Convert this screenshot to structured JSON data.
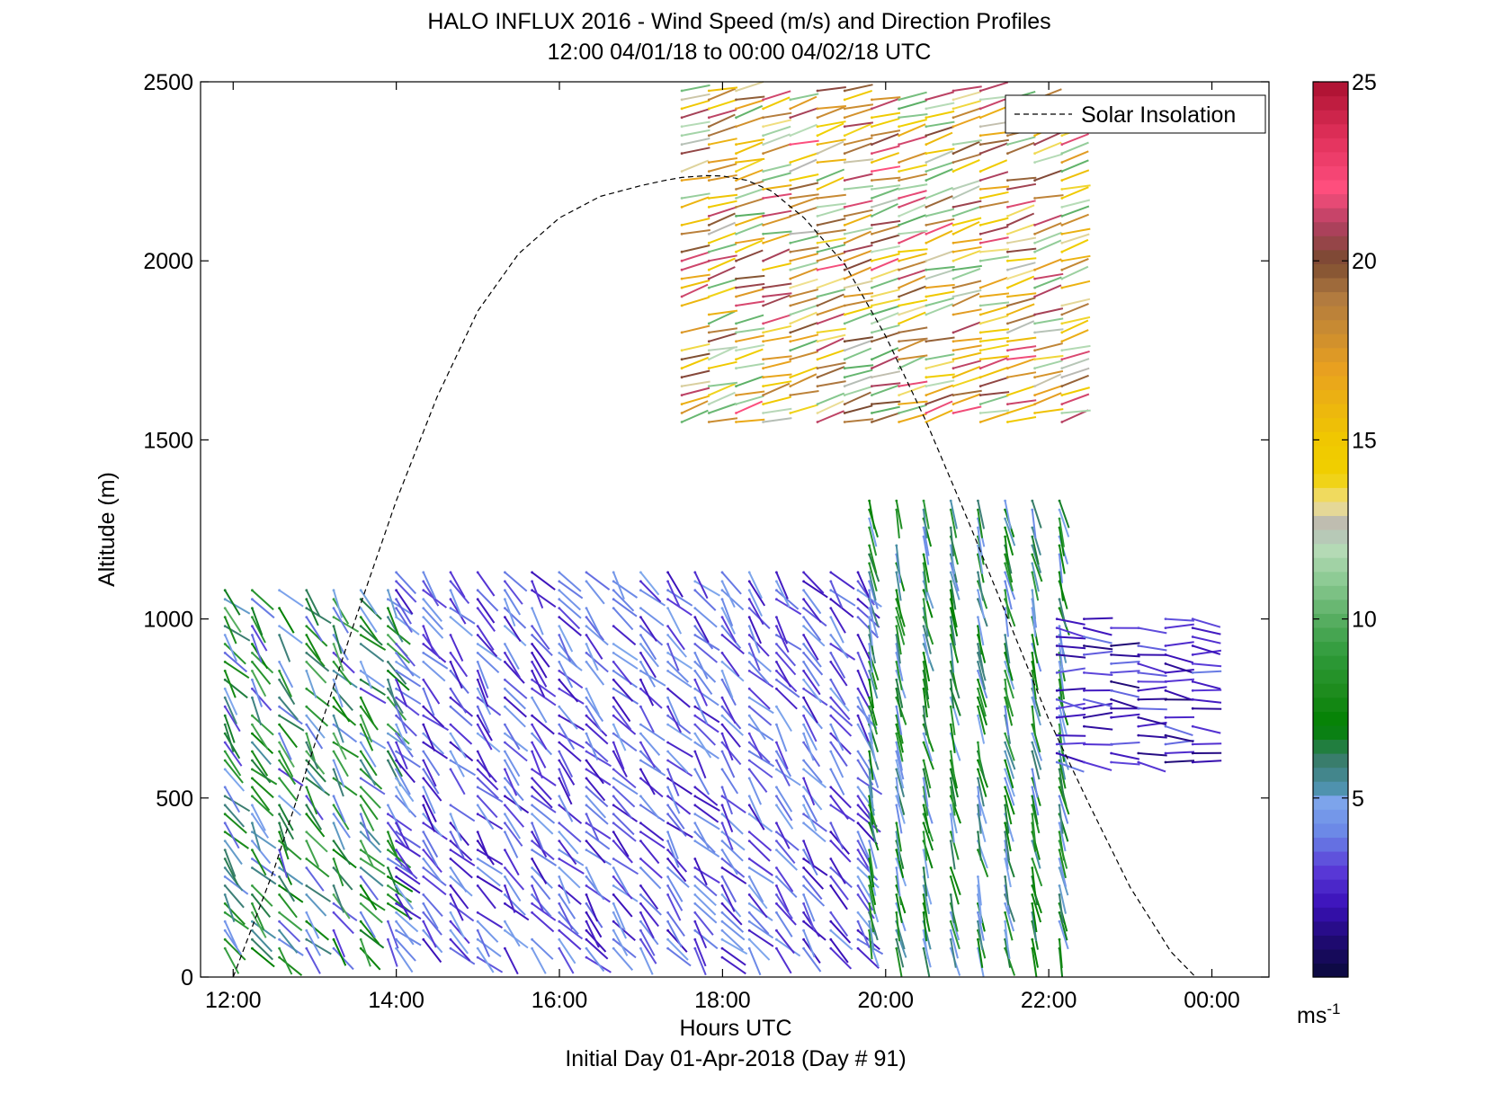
{
  "chart_data": {
    "type": "wind_barb_profile",
    "title": "HALO INFLUX 2016 - Wind Speed (m/s) and Direction Profiles",
    "subtitle": "12:00 04/01/18 to 00:00 04/02/18  UTC",
    "xlabel": "Hours UTC",
    "xlabel2": "Initial Day 01-Apr-2018 (Day # 91)",
    "ylabel": "Altitude (m)",
    "xlim": [
      11.6,
      24.7
    ],
    "ylim": [
      0,
      2500
    ],
    "xticks": [
      {
        "value": 12,
        "label": "12:00"
      },
      {
        "value": 14,
        "label": "14:00"
      },
      {
        "value": 16,
        "label": "16:00"
      },
      {
        "value": 18,
        "label": "18:00"
      },
      {
        "value": 20,
        "label": "20:00"
      },
      {
        "value": 22,
        "label": "22:00"
      },
      {
        "value": 24,
        "label": "00:00"
      }
    ],
    "yticks": [
      {
        "value": 0,
        "label": "0"
      },
      {
        "value": 500,
        "label": "500"
      },
      {
        "value": 1000,
        "label": "1000"
      },
      {
        "value": 1500,
        "label": "1500"
      },
      {
        "value": 2000,
        "label": "2000"
      },
      {
        "value": 2500,
        "label": "2500"
      }
    ],
    "colorbar": {
      "range": [
        0,
        25
      ],
      "ticks": [
        {
          "value": 5,
          "label": "5"
        },
        {
          "value": 10,
          "label": "10"
        },
        {
          "value": 15,
          "label": "15"
        },
        {
          "value": 20,
          "label": "20"
        },
        {
          "value": 25,
          "label": "25"
        }
      ],
      "unit_base": "ms",
      "unit_exp": "-1",
      "stops": [
        {
          "v": 0,
          "c": "#0a0a3a"
        },
        {
          "v": 1,
          "c": "#1e0a70"
        },
        {
          "v": 2,
          "c": "#3a10b8"
        },
        {
          "v": 3,
          "c": "#5a3ad8"
        },
        {
          "v": 4,
          "c": "#6a86e6"
        },
        {
          "v": 5,
          "c": "#7fa8ec"
        },
        {
          "v": 5.3,
          "c": "#4a90a8"
        },
        {
          "v": 6,
          "c": "#3c7d72"
        },
        {
          "v": 7,
          "c": "#008000"
        },
        {
          "v": 8,
          "c": "#1e8c1e"
        },
        {
          "v": 9,
          "c": "#2f9a3a"
        },
        {
          "v": 10,
          "c": "#58ae62"
        },
        {
          "v": 11,
          "c": "#88c890"
        },
        {
          "v": 12,
          "c": "#b8dcb8"
        },
        {
          "v": 12.6,
          "c": "#b6b6b6"
        },
        {
          "v": 13.2,
          "c": "#f0e090"
        },
        {
          "v": 14,
          "c": "#f0d000"
        },
        {
          "v": 15,
          "c": "#f0c800"
        },
        {
          "v": 17,
          "c": "#e8a020"
        },
        {
          "v": 19,
          "c": "#b07a40"
        },
        {
          "v": 20,
          "c": "#7a4a30"
        },
        {
          "v": 21,
          "c": "#b04060"
        },
        {
          "v": 22,
          "c": "#ff4f7f"
        },
        {
          "v": 23.5,
          "c": "#e0305a"
        },
        {
          "v": 25,
          "c": "#aa1030"
        }
      ]
    },
    "series": [
      {
        "name": "Solar Insolation",
        "style": "dashed",
        "x": [
          12.0,
          12.5,
          13.0,
          13.5,
          14.0,
          14.5,
          15.0,
          15.5,
          16.0,
          16.5,
          17.0,
          17.3,
          17.5,
          17.8,
          18.0,
          18.3,
          18.6,
          19.0,
          19.5,
          20.0,
          20.5,
          21.0,
          21.5,
          22.0,
          22.5,
          23.0,
          23.5,
          23.8
        ],
        "y": [
          0,
          300,
          650,
          1000,
          1330,
          1620,
          1860,
          2020,
          2120,
          2180,
          2210,
          2225,
          2233,
          2238,
          2237,
          2225,
          2195,
          2120,
          1990,
          1790,
          1550,
          1280,
          1000,
          720,
          480,
          250,
          70,
          0
        ]
      }
    ],
    "barbs_description": "Wind vectors at ~30 min intervals and ~25 m altitude spacing, colored by wind speed (m/s)",
    "wind_regimes": [
      {
        "t0": 11.9,
        "t1": 14.0,
        "z0": 30,
        "z1": 1100,
        "speed": [
          3,
          10
        ],
        "dir_deg": [
          300,
          345
        ]
      },
      {
        "t0": 14.0,
        "t1": 19.8,
        "z0": 30,
        "z1": 1150,
        "speed": [
          2,
          5
        ],
        "dir_deg": [
          300,
          340
        ]
      },
      {
        "t0": 19.8,
        "t1": 22.3,
        "z0": 30,
        "z1": 1350,
        "speed": [
          4,
          9
        ],
        "dir_deg": [
          340,
          355
        ]
      },
      {
        "t0": 22.1,
        "t1": 24.0,
        "z0": 600,
        "z1": 1000,
        "speed": [
          1,
          4
        ],
        "dir_deg": [
          260,
          290
        ]
      },
      {
        "t0": 17.5,
        "t1": 22.3,
        "z0": 1550,
        "z1": 2500,
        "speed": [
          10,
          22
        ],
        "dir_deg": [
          245,
          265
        ]
      }
    ],
    "legend": {
      "entries": [
        "Solar Insolation"
      ],
      "placement": "top-right"
    }
  }
}
